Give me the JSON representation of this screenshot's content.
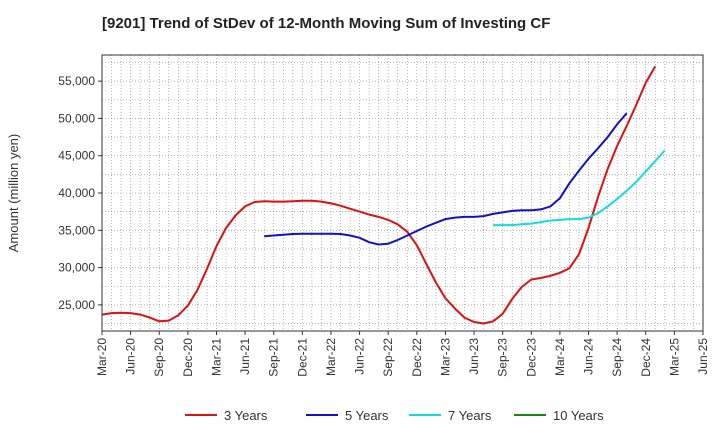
{
  "chart_data": {
    "type": "line",
    "title": "[9201]  Trend of StDev of 12-Month Moving Sum of Investing CF",
    "ylabel": "Amount (million yen)",
    "xlabel": "",
    "grid": true,
    "legend_placement": "bottom",
    "ylim": [
      21500,
      58500
    ],
    "yticks": [
      25000,
      30000,
      35000,
      40000,
      45000,
      50000,
      55000
    ],
    "ytick_labels": [
      "25,000",
      "30,000",
      "35,000",
      "40,000",
      "45,000",
      "50,000",
      "55,000"
    ],
    "xlim_months": [
      "Mar-20",
      "Jun-25"
    ],
    "xtick_labels": [
      "Mar-20",
      "Jun-20",
      "Sep-20",
      "Dec-20",
      "Mar-21",
      "Jun-21",
      "Sep-21",
      "Dec-21",
      "Mar-22",
      "Jun-22",
      "Sep-22",
      "Dec-22",
      "Mar-23",
      "Jun-23",
      "Sep-23",
      "Dec-23",
      "Mar-24",
      "Jun-24",
      "Sep-24",
      "Dec-24",
      "Mar-25",
      "Jun-25"
    ],
    "series": [
      {
        "name": "3 Years",
        "color": "#dd1111",
        "start": "Mar-20",
        "values": [
          23700,
          23900,
          23950,
          23900,
          23700,
          23300,
          22800,
          22900,
          23600,
          24900,
          27000,
          29800,
          32900,
          35300,
          37000,
          38200,
          38800,
          38900,
          38850,
          38850,
          38900,
          38950,
          38950,
          38850,
          38600,
          38300,
          37900,
          37500,
          37100,
          36800,
          36400,
          35800,
          34800,
          33000,
          30500,
          28000,
          25900,
          24500,
          23300,
          22700,
          22500,
          22800,
          23800,
          25800,
          27400,
          28400,
          28600,
          28900,
          29300,
          29900,
          31800,
          35300,
          39500,
          43200,
          46300,
          49000,
          51800,
          54800,
          57000
        ]
      },
      {
        "name": "5 Years",
        "color": "#1111cc",
        "start": "Aug-21",
        "values": [
          34200,
          34300,
          34400,
          34500,
          34550,
          34550,
          34550,
          34550,
          34500,
          34300,
          34000,
          33400,
          33100,
          33200,
          33700,
          34300,
          34900,
          35500,
          36000,
          36500,
          36700,
          36800,
          36800,
          36900,
          37200,
          37400,
          37600,
          37700,
          37700,
          37800,
          38200,
          39300,
          41300,
          43000,
          44600,
          46000,
          47500,
          49200,
          50700
        ]
      },
      {
        "name": "7 Years",
        "color": "#11dddd",
        "start": "Aug-23",
        "values": [
          35700,
          35700,
          35700,
          35800,
          35900,
          36100,
          36300,
          36400,
          36500,
          36500,
          36700,
          37300,
          38200,
          39200,
          40300,
          41500,
          42900,
          44300,
          45700
        ]
      },
      {
        "name": "10 Years",
        "color": "#118811",
        "start": "Mar-25",
        "values": []
      }
    ]
  }
}
